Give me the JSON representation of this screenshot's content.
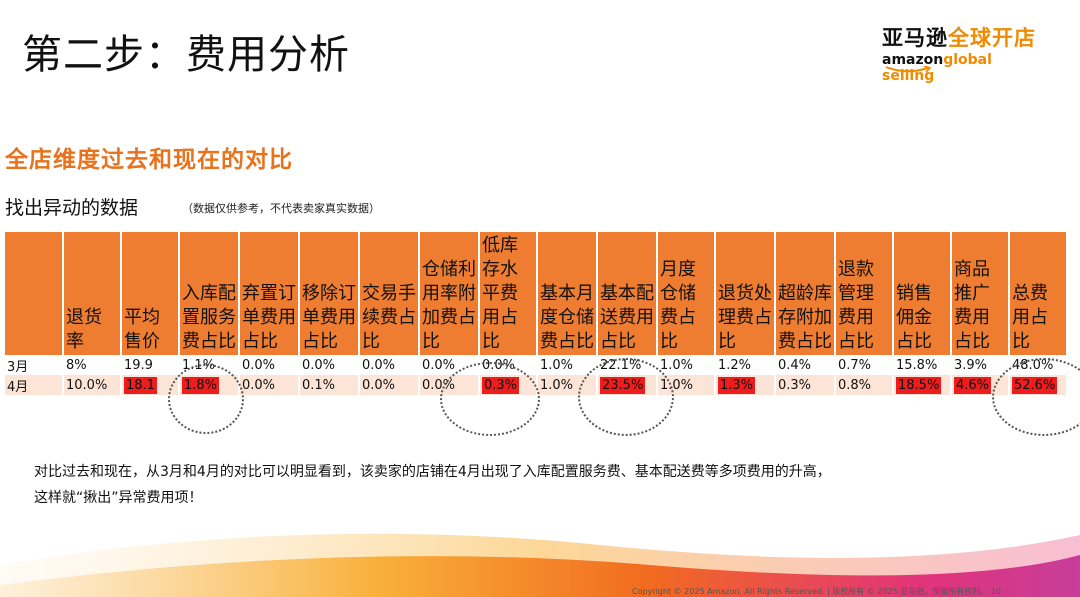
{
  "slide": {
    "title": "第二步：费用分析",
    "section_title": "全店维度过去和现在的对比",
    "sub_title": "找出异动的数据",
    "sub_note": "（数据仅供参考，不代表卖家真实数据）"
  },
  "logo": {
    "cn_black": "亚马逊",
    "cn_orange": "全球开店",
    "en_black": "amazon",
    "en_orange": "global selling"
  },
  "table": {
    "headers": [
      "",
      "退货率",
      "平均售价",
      "入库配置服务费占比",
      "弃置订单费用占比",
      "移除订单费用占比",
      "交易手续费占比",
      "仓储利用率附加费占比",
      "低库存水平费用占比",
      "基本月度仓储费占比",
      "基本配送费用占比",
      "月度仓储费占比",
      "退货处理费占比",
      "超龄库存附加费占比",
      "退款管理费用占比",
      "销售佣金占比",
      "商品推广费用占比",
      "总费用占比"
    ],
    "rows": [
      {
        "label": "3月",
        "cells": [
          "8%",
          "19.9",
          "1.1%",
          "0.0%",
          "0.0%",
          "0.0%",
          "0.0%",
          "0.0%",
          "1.0%",
          "22.1%",
          "1.0%",
          "1.2%",
          "0.4%",
          "0.7%",
          "15.8%",
          "3.9%",
          "48.0%"
        ],
        "highlight": [
          false,
          false,
          false,
          false,
          false,
          false,
          false,
          false,
          false,
          false,
          false,
          false,
          false,
          false,
          false,
          false,
          false
        ]
      },
      {
        "label": "4月",
        "cells": [
          "10.0%",
          "18.1",
          "1.8%",
          "0.0%",
          "0.1%",
          "0.0%",
          "0.0%",
          "0.3%",
          "1.0%",
          "23.5%",
          "1.0%",
          "1.3%",
          "0.3%",
          "0.8%",
          "18.5%",
          "4.6%",
          "52.6%"
        ],
        "highlight": [
          false,
          true,
          true,
          false,
          false,
          false,
          false,
          true,
          false,
          true,
          false,
          true,
          false,
          false,
          true,
          true,
          true
        ]
      }
    ],
    "highlight_color": "#ee1c1c",
    "header_color": "#ee7d31"
  },
  "summary": {
    "line1": "对比过去和现在，从3月和4月的对比可以明显看到，该卖家的店铺在4月出现了入库配置服务费、基本配送费等多项费用的升高，",
    "line2": "这样就“揪出”异常费用项！"
  },
  "footer": {
    "copyright": "Copyright © 2025 Amazon. All Rights Reserved.  |  版权所有 © 2025 亚马逊。保留所有权利。   10"
  }
}
